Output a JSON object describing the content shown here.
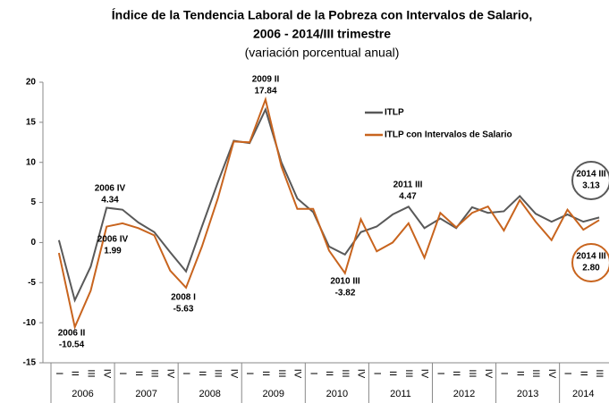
{
  "chart_data": {
    "type": "line",
    "title": "Índice de la Tendencia Laboral de la Pobreza con Intervalos de Salario,",
    "title_line2": "2006 - 2014/III trimestre",
    "subtitle": "(variación porcentual anual)",
    "categories": [
      "I",
      "II",
      "III",
      "IV",
      "I",
      "II",
      "III",
      "IV",
      "I",
      "II",
      "III",
      "IV",
      "I",
      "II",
      "III",
      "IV",
      "I",
      "II",
      "III",
      "IV",
      "I",
      "II",
      "III",
      "IV",
      "I",
      "II",
      "III",
      "IV",
      "I",
      "II",
      "III",
      "IV",
      "I",
      "II",
      "III"
    ],
    "years": [
      "2006",
      "2007",
      "2008",
      "2009",
      "2010",
      "2011",
      "2012",
      "2013",
      "2014"
    ],
    "series": [
      {
        "name": "ITLP",
        "color": "#595959",
        "values": [
          0.3,
          -7.2,
          -3,
          4.34,
          4.1,
          2.5,
          1.3,
          -1.2,
          -3.6,
          2,
          7.5,
          12.7,
          12.4,
          16.6,
          10,
          5.5,
          3.8,
          -0.5,
          -1.5,
          1.3,
          2,
          3.5,
          4.47,
          1.8,
          3,
          1.8,
          4.4,
          3.7,
          3.9,
          5.8,
          3.6,
          2.6,
          3.5,
          2.6,
          3.13
        ]
      },
      {
        "name": "ITLP con Intervalos de Salario",
        "color": "#c8641e",
        "values": [
          -1.3,
          -10.54,
          -6,
          1.99,
          2.4,
          1.8,
          0.9,
          -3.5,
          -5.63,
          -0.5,
          5.5,
          12.6,
          12.5,
          17.84,
          9.5,
          4.2,
          4.2,
          -1,
          -3.82,
          2.9,
          -1.1,
          0,
          2.4,
          -1.9,
          3.7,
          1.9,
          3.7,
          4.5,
          1.5,
          5.3,
          2.6,
          0.3,
          4.1,
          1.6,
          2.8
        ],
        "value_labels": [
          null,
          "-10.54",
          null,
          "1.99",
          null,
          null,
          null,
          null,
          "-5.63",
          null,
          null,
          null,
          null,
          "17.84",
          null,
          null,
          null,
          null,
          "-3.82",
          null,
          null,
          null,
          null,
          null,
          null,
          null,
          null,
          null,
          null,
          null,
          null,
          null,
          null,
          null,
          "2.80"
        ]
      }
    ],
    "annotations": [
      "2006 IV",
      "2006 II",
      "2006 IV",
      "2008 I",
      "2009 II",
      "2010 III",
      "2011 III",
      "2014 III",
      "2014 III"
    ],
    "ylim": [
      -15,
      20
    ],
    "yticks": [
      -15,
      -10,
      -5,
      0,
      5,
      10,
      15,
      20
    ],
    "legend": "upper right"
  }
}
